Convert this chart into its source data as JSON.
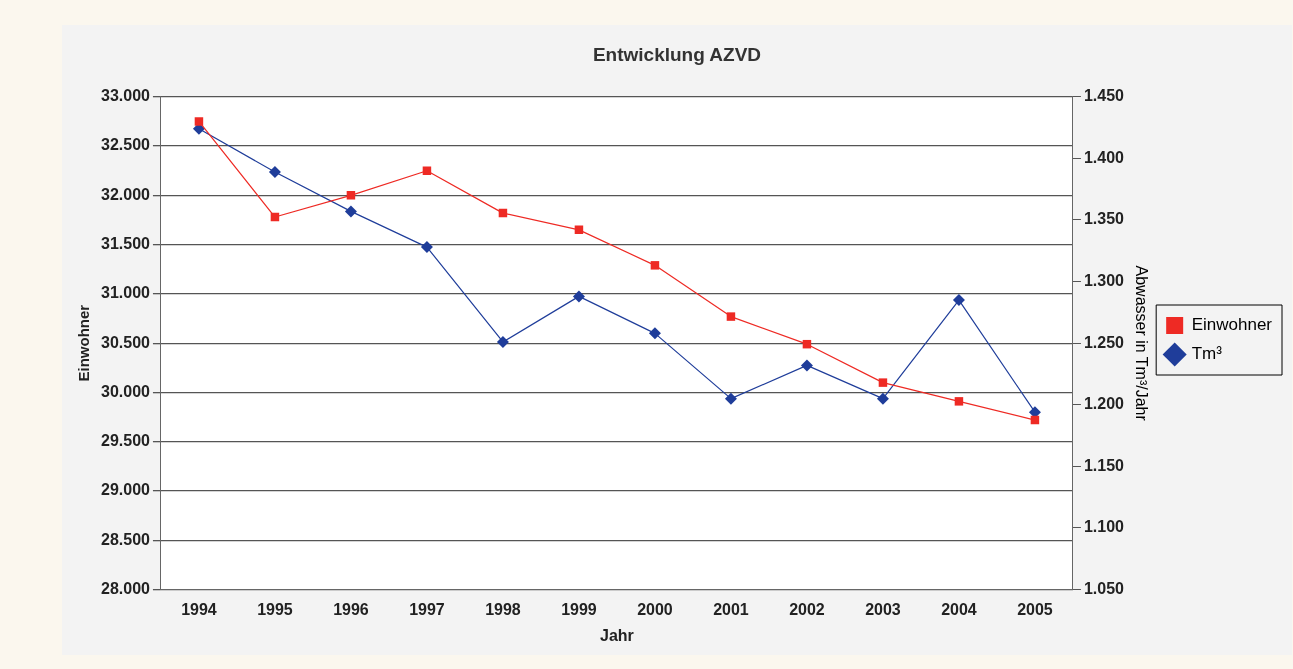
{
  "chart_data": {
    "type": "line",
    "title": "Entwicklung AZVD",
    "xlabel": "Jahr",
    "ylabel": "Einwohner",
    "y2label": "Abwasser in Tm³/Jahr",
    "categories": [
      "1994",
      "1995",
      "1996",
      "1997",
      "1998",
      "1999",
      "2000",
      "2001",
      "2002",
      "2003",
      "2004",
      "2005"
    ],
    "series": [
      {
        "name": "Einwohner",
        "color": "#ee2a24",
        "marker": "square",
        "values": [
          32750,
          31780,
          32000,
          32250,
          31820,
          31650,
          31290,
          30770,
          30490,
          30100,
          29910,
          29720
        ]
      },
      {
        "name": "Tm³",
        "color": "#1f3d9a",
        "marker": "diamond",
        "axis": "y2",
        "values": [
          1.424,
          1.389,
          1.357,
          1.328,
          1.251,
          1.288,
          1.258,
          1.205,
          1.232,
          1.205,
          1.285,
          1.194
        ]
      }
    ],
    "ylim": [
      28000,
      33000
    ],
    "yticks": [
      {
        "value": 28000,
        "label": "28.000"
      },
      {
        "value": 28500,
        "label": "28.500"
      },
      {
        "value": 29000,
        "label": "29.000"
      },
      {
        "value": 29500,
        "label": "29.500"
      },
      {
        "value": 30000,
        "label": "30.000"
      },
      {
        "value": 30500,
        "label": "30.500"
      },
      {
        "value": 31000,
        "label": "31.000"
      },
      {
        "value": 31500,
        "label": "31.500"
      },
      {
        "value": 32000,
        "label": "32.000"
      },
      {
        "value": 32500,
        "label": "32.500"
      },
      {
        "value": 33000,
        "label": "33.000"
      }
    ],
    "y2lim": [
      1.05,
      1.45
    ],
    "y2ticks": [
      {
        "value": 1.05,
        "label": "1.050"
      },
      {
        "value": 1.1,
        "label": "1.100"
      },
      {
        "value": 1.15,
        "label": "1.150"
      },
      {
        "value": 1.2,
        "label": "1.200"
      },
      {
        "value": 1.25,
        "label": "1.250"
      },
      {
        "value": 1.3,
        "label": "1.300"
      },
      {
        "value": 1.35,
        "label": "1.350"
      },
      {
        "value": 1.4,
        "label": "1.400"
      },
      {
        "value": 1.45,
        "label": "1.450"
      }
    ],
    "grid": "y",
    "legend": "right",
    "line_style": "solid"
  }
}
